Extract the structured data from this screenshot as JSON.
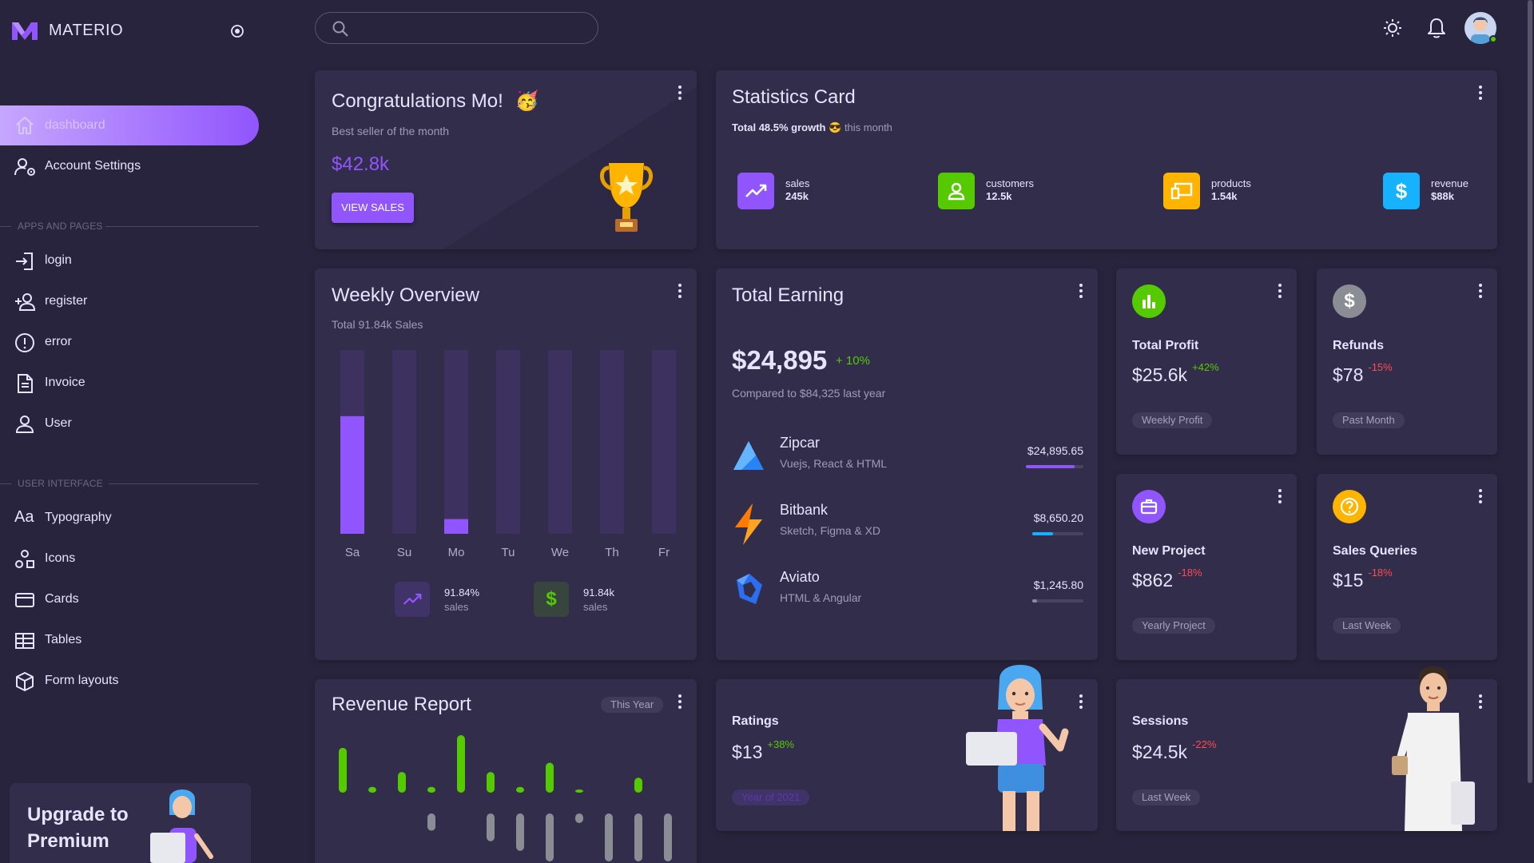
{
  "brand": {
    "name": "MATERIO"
  },
  "colors": {
    "primary": "#9155fd",
    "success": "#56ca00",
    "warning": "#ffb400",
    "info": "#16b1ff",
    "error": "#ff4c51",
    "card": "#312d4b",
    "bg": "#28243d"
  },
  "sidebar": {
    "active_item": {
      "label": "dashboard",
      "icon": "home-icon"
    },
    "items": [
      {
        "label": "Account Settings",
        "icon": "account-cog-icon"
      }
    ],
    "sections": [
      {
        "title": "APPS AND PAGES",
        "items": [
          {
            "label": "login",
            "icon": "login-icon"
          },
          {
            "label": "register",
            "icon": "account-plus-icon"
          },
          {
            "label": "error",
            "icon": "alert-circle-icon"
          },
          {
            "label": "Invoice",
            "icon": "file-document-icon"
          },
          {
            "label": "User",
            "icon": "account-icon"
          }
        ]
      },
      {
        "title": "USER INTERFACE",
        "items": [
          {
            "label": "Typography",
            "icon": "typography-icon"
          },
          {
            "label": "Icons",
            "icon": "shapes-icon"
          },
          {
            "label": "Cards",
            "icon": "credit-card-icon"
          },
          {
            "label": "Tables",
            "icon": "table-icon"
          },
          {
            "label": "Form layouts",
            "icon": "cube-icon"
          }
        ]
      }
    ],
    "upgrade": {
      "line1": "Upgrade to",
      "line2": "Premium"
    }
  },
  "header": {
    "search_placeholder": ""
  },
  "congrats": {
    "title": "Congratulations Mo!",
    "emoji": "🥳",
    "subtitle": "Best seller of the month",
    "amount": "$42.8k",
    "button": "VIEW SALES"
  },
  "statistics": {
    "title": "Statistics Card",
    "growth_bold": "Total 48.5% growth",
    "growth_emoji": "😎",
    "growth_rest": "this month",
    "items": [
      {
        "name": "sales",
        "value": "245k",
        "color": "#9155fd",
        "icon": "trending-up-icon"
      },
      {
        "name": "customers",
        "value": "12.5k",
        "color": "#56ca00",
        "icon": "account-icon"
      },
      {
        "name": "products",
        "value": "1.54k",
        "color": "#ffb400",
        "icon": "devices-icon"
      },
      {
        "name": "revenue",
        "value": "$88k",
        "color": "#16b1ff",
        "icon": "dollar-icon"
      }
    ]
  },
  "weekly": {
    "title": "Weekly Overview",
    "subtitle": "Total 91.84k Sales",
    "stats": [
      {
        "value": "91.84%",
        "label": "sales",
        "icon": "trending-up-icon",
        "color": "#9155fd"
      },
      {
        "value": "91.84k",
        "label": "sales",
        "icon": "dollar-icon",
        "color": "#56ca00"
      }
    ]
  },
  "chart_data": {
    "type": "bar",
    "categories": [
      "Sa",
      "Su",
      "Mo",
      "Tu",
      "We",
      "Th",
      "Fr"
    ],
    "values": [
      64,
      0,
      8,
      0,
      0,
      0,
      0
    ],
    "ylim": [
      0,
      100
    ],
    "grid": false
  },
  "earning": {
    "title": "Total Earning",
    "amount": "$24,895",
    "change": "+ 10%",
    "compare": "Compared to $84,325 last year",
    "items": [
      {
        "name": "Zipcar",
        "desc": "Vuejs, React & HTML",
        "amount": "$24,895.65",
        "progress": 0.85,
        "bar_color": "#9155fd",
        "logo": "zipcar-logo-icon"
      },
      {
        "name": "Bitbank",
        "desc": "Sketch, Figma & XD",
        "amount": "$8,650.20",
        "progress": 0.4,
        "bar_color": "#16b1ff",
        "logo": "bitbank-logo-icon"
      },
      {
        "name": "Aviato",
        "desc": "HTML & Angular",
        "amount": "$1,245.80",
        "progress": 0.1,
        "bar_color": "#8a8d93",
        "logo": "aviato-logo-icon"
      }
    ]
  },
  "mini_cards": [
    {
      "title": "Total Profit",
      "value": "$25.6k",
      "change": "+42%",
      "trend": "pos",
      "chip": "Weekly Profit",
      "icon": "poll-icon",
      "color": "#56ca00"
    },
    {
      "title": "Refunds",
      "value": "$78",
      "change": "-15%",
      "trend": "neg",
      "chip": "Past Month",
      "icon": "dollar-icon",
      "color": "#8a8d93"
    },
    {
      "title": "New Project",
      "value": "$862",
      "change": "-18%",
      "trend": "neg",
      "chip": "Yearly Project",
      "icon": "briefcase-icon",
      "color": "#9155fd"
    },
    {
      "title": "Sales Queries",
      "value": "$15",
      "change": "-18%",
      "trend": "neg",
      "chip": "Last Week",
      "icon": "help-circle-icon",
      "color": "#ffb400"
    }
  ],
  "revenue": {
    "title": "Revenue Report",
    "chip": "This Year",
    "green": [
      78,
      10,
      36,
      10,
      100,
      36,
      10,
      52,
      4,
      0,
      26,
      0
    ],
    "grey": [
      0,
      0,
      0,
      36,
      0,
      58,
      78,
      100,
      20,
      100,
      100,
      100
    ]
  },
  "ratings": {
    "title": "Ratings",
    "value": "$13",
    "change": "+38%",
    "chip": "Year of 2021"
  },
  "sessions": {
    "title": "Sessions",
    "value": "$24.5k",
    "change": "-22%",
    "chip": "Last Week"
  }
}
